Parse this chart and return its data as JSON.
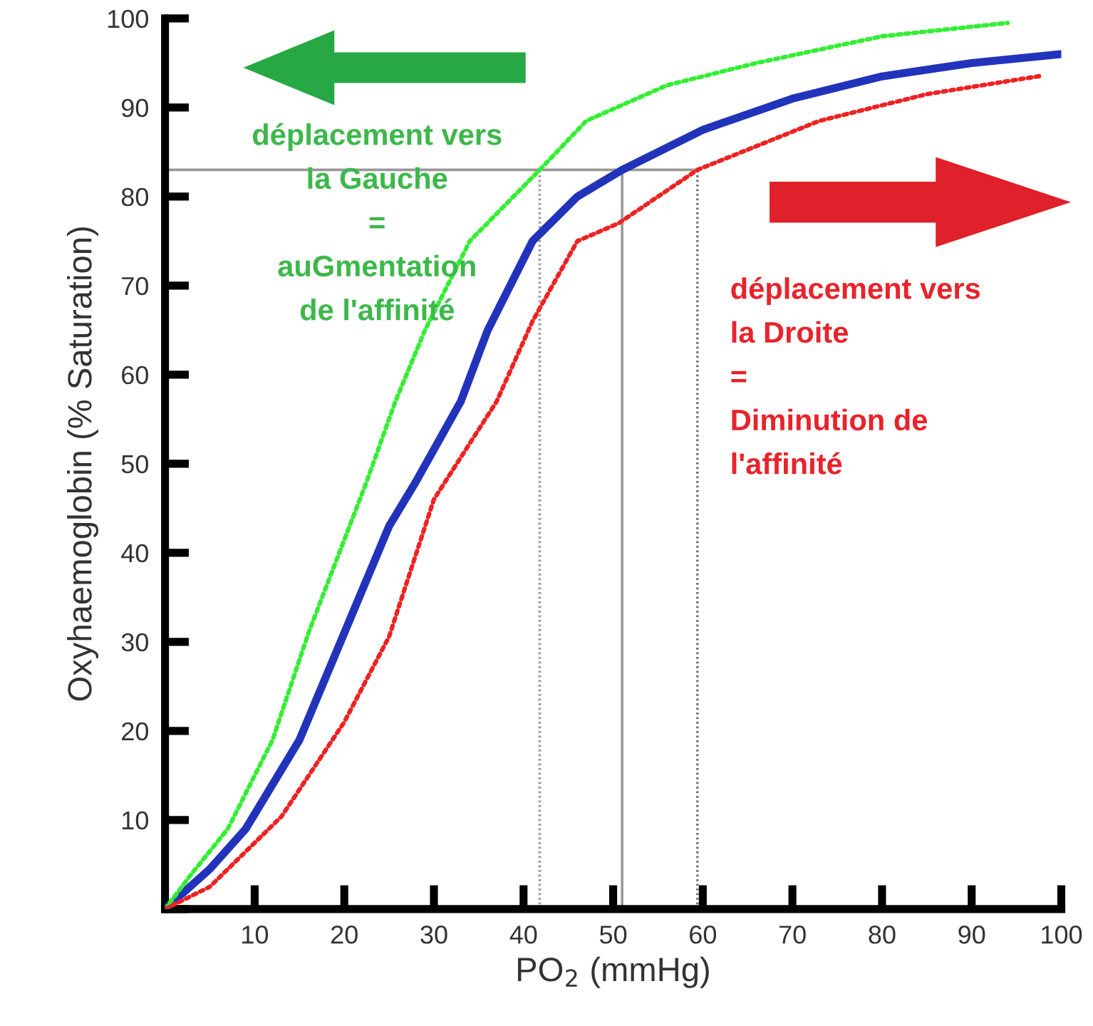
{
  "chart_data": {
    "type": "line",
    "xlabel": "PO$_{2}$ (mmHg)",
    "ylabel": "Oxyhaemoglobin (% Saturation)",
    "xlim": [
      0,
      100
    ],
    "ylim": [
      0,
      100
    ],
    "xticks": [
      10,
      20,
      30,
      40,
      50,
      60,
      70,
      80,
      90,
      100
    ],
    "yticks": [
      {
        "value": 0,
        "label": null
      },
      10,
      20,
      30,
      40,
      50,
      60,
      70,
      80,
      90,
      100
    ],
    "grid": false,
    "legend": false,
    "marker": "none",
    "series": [
      {
        "color": "#2233bb",
        "line_style": "solid",
        "x": [
          0,
          5,
          9,
          15,
          20,
          25,
          28,
          33,
          36,
          41,
          46,
          51,
          60,
          70,
          80,
          90,
          100
        ],
        "values": [
          0,
          4.5,
          9,
          19,
          31,
          43,
          48,
          57,
          65,
          75,
          80,
          83,
          87.5,
          91,
          93.5,
          95,
          96
        ]
      },
      {
        "color": "#33ee33",
        "line_style": "dotted",
        "x": [
          0,
          3,
          7,
          12,
          16,
          22.5,
          25.7,
          29,
          34,
          41.8,
          47,
          56,
          66,
          80,
          94
        ],
        "values": [
          0,
          4,
          9,
          19,
          31,
          48,
          57,
          65,
          75,
          83,
          88.5,
          92.5,
          95,
          98,
          99.5
        ]
      },
      {
        "color": "#ee2222",
        "line_style": "dotted",
        "x": [
          0,
          5,
          13,
          20,
          25,
          30,
          37,
          41,
          46,
          50.6,
          59.4,
          73,
          85,
          98
        ],
        "values": [
          0,
          2.5,
          10.4,
          21,
          30.6,
          46,
          57,
          66,
          75,
          77,
          83,
          88.5,
          91.5,
          93.6
        ]
      }
    ],
    "ref_lines": [
      {
        "axis": "y",
        "value": 83,
        "color": "#999999",
        "line_style": "solid"
      },
      {
        "axis": "x",
        "value": 41.8,
        "color": "#999999",
        "line_style": "dotted"
      },
      {
        "axis": "x",
        "value": 51,
        "color": "#999999",
        "line_style": "solid"
      },
      {
        "axis": "x",
        "value": 59.4,
        "color": "#777777",
        "line_style": "dotted"
      }
    ],
    "annotations": [
      "déplacement vers\nla Gauche\n=\nauGmentation\nde l'affinité",
      "déplacement vers\nla Droite\n=\nDiminution de\nl'affinité"
    ]
  }
}
